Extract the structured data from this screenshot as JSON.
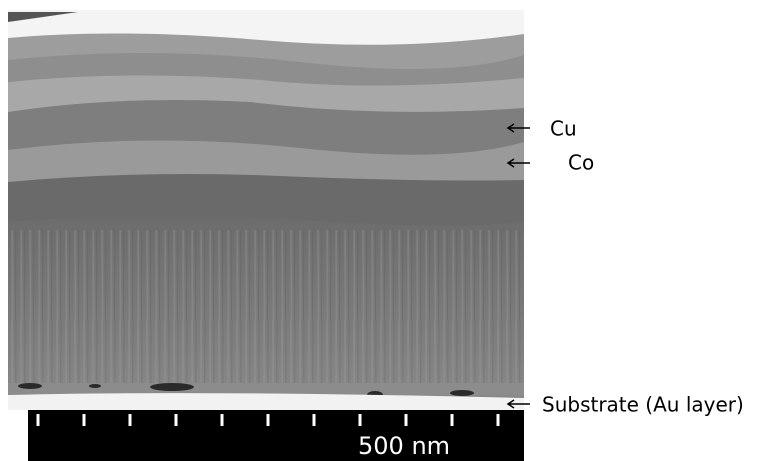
{
  "labels": {
    "cu": "Cu",
    "co": "Co",
    "substrate": "Substrate (Au layer)"
  },
  "scale_bar": {
    "label": "500 nm"
  }
}
